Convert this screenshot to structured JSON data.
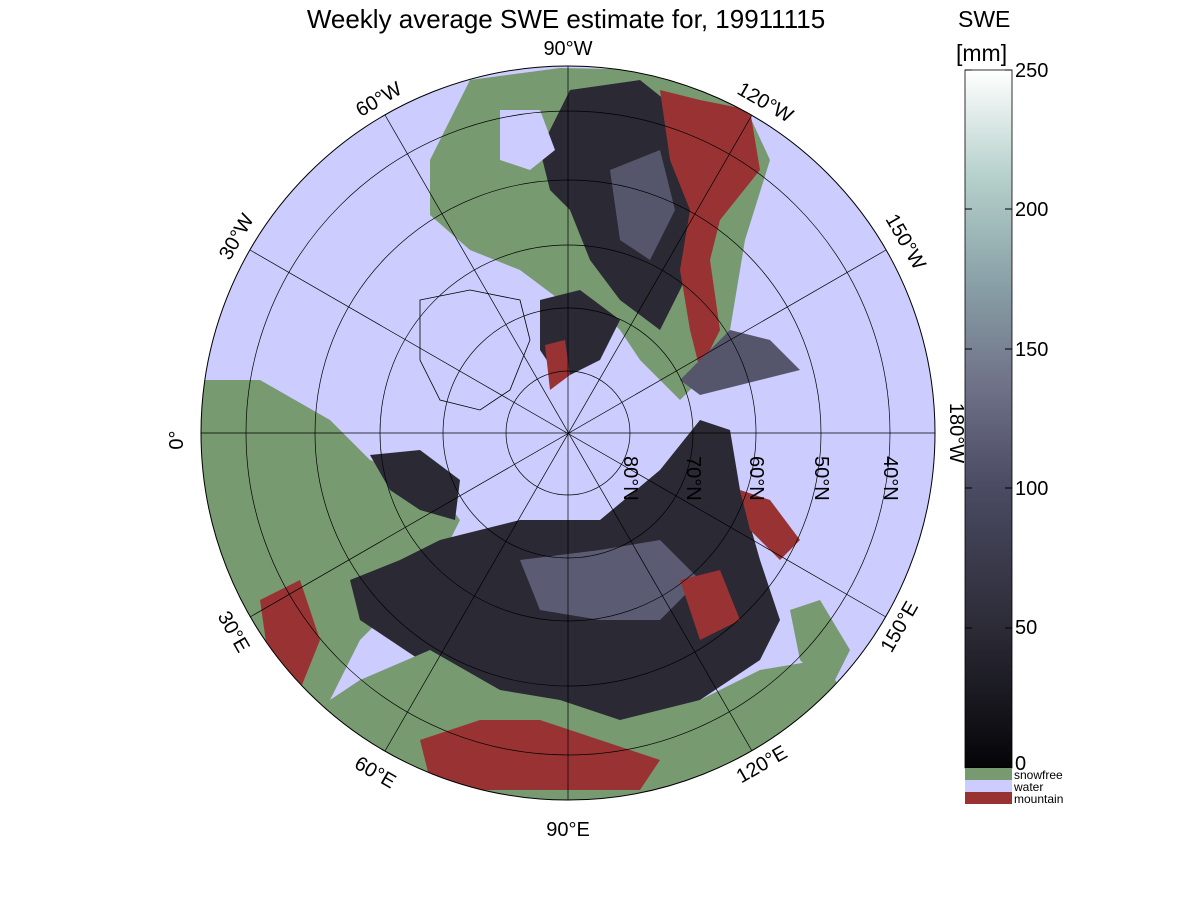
{
  "title": "Weekly average SWE estimate for, 19911115",
  "colorbar": {
    "label_line1": "SWE",
    "label_line2": "[mm]",
    "ticks": [
      "250",
      "200",
      "150",
      "100",
      "50",
      "0"
    ],
    "range": [
      0,
      250
    ],
    "colormap_stops": [
      "#050508",
      "#2c2b36",
      "#4a4a63",
      "#6f7288",
      "#8aa2a8",
      "#b7d1cc",
      "#ffffff"
    ]
  },
  "legend": [
    {
      "label": "snowfree",
      "color": "#779a71"
    },
    {
      "label": "water",
      "color": "#ccccff"
    },
    {
      "label": "mountain",
      "color": "#993333"
    }
  ],
  "map": {
    "projection": "north polar stereographic",
    "longitude_labels": {
      "lon_90w": "90°W",
      "lon_60w": "60°W",
      "lon_30w": "30°W",
      "lon_0": "0°",
      "lon_120w": "120°W",
      "lon_150w": "150°W",
      "lon_180w": "180°W",
      "lon_150e": "150°E",
      "lon_120e": "120°E",
      "lon_90e": "90°E",
      "lon_60e": "60°E",
      "lon_30e": "30°E"
    },
    "latitude_labels": {
      "lat_80n": "80°N",
      "lat_70n": "70°N",
      "lat_60n": "60°N",
      "lat_50n": "50°N",
      "lat_40n": "40°N"
    },
    "colors": {
      "water": "#ccccff",
      "snowfree": "#779a71",
      "mountain": "#993333",
      "snow_dark": "#1b1a22",
      "snow_mid": "#44445a",
      "snow_high": "#6e6f88",
      "grid": "#000000"
    }
  }
}
